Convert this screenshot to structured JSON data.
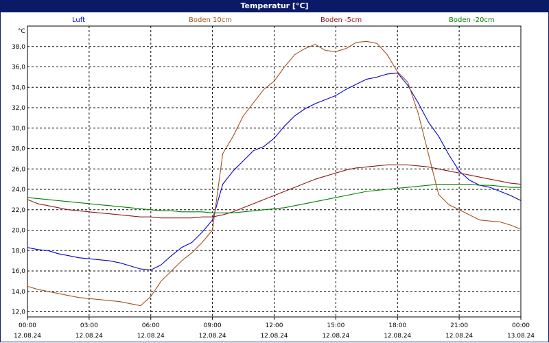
{
  "window": {
    "title": "Temperatur [°C]"
  },
  "chart_data": {
    "type": "line",
    "title": "Temperatur [°C]",
    "ylabel": "°C",
    "xlabel": "",
    "ylim": [
      11.5,
      40
    ],
    "xlim_hours": [
      0,
      24
    ],
    "grid": true,
    "legend_position": "top",
    "yticks": [
      "12,0",
      "14,0",
      "16,0",
      "18,0",
      "20,0",
      "22,0",
      "24,0",
      "26,0",
      "28,0",
      "30,0",
      "32,0",
      "34,0",
      "36,0",
      "38,0"
    ],
    "xticks": [
      {
        "time": "00:00",
        "date": "12.08.24"
      },
      {
        "time": "03:00",
        "date": "12.08.24"
      },
      {
        "time": "06:00",
        "date": "12.08.24"
      },
      {
        "time": "09:00",
        "date": "12.08.24"
      },
      {
        "time": "12:00",
        "date": "12.08.24"
      },
      {
        "time": "15:00",
        "date": "12.08.24"
      },
      {
        "time": "18:00",
        "date": "12.08.24"
      },
      {
        "time": "21:00",
        "date": "12.08.24"
      },
      {
        "time": "00:00",
        "date": "13.08.24"
      }
    ],
    "x_hours": [
      0,
      0.5,
      1,
      1.5,
      2,
      2.5,
      3,
      3.5,
      4,
      4.5,
      5,
      5.5,
      6,
      6.5,
      7,
      7.5,
      8,
      8.5,
      9,
      9.5,
      10,
      10.5,
      11,
      11.5,
      12,
      12.5,
      13,
      13.5,
      14,
      14.5,
      15,
      15.5,
      16,
      16.5,
      17,
      17.5,
      18,
      18.5,
      19,
      19.5,
      20,
      20.5,
      21,
      21.5,
      22,
      22.5,
      23,
      23.5,
      24
    ],
    "series": [
      {
        "name": "Luft",
        "color": "#0000cc",
        "values": [
          18.3,
          18.1,
          18.0,
          17.7,
          17.5,
          17.3,
          17.2,
          17.1,
          17.0,
          16.8,
          16.5,
          16.2,
          16.1,
          16.6,
          17.5,
          18.3,
          18.8,
          19.8,
          21.0,
          24.5,
          25.8,
          26.8,
          27.8,
          28.2,
          29.0,
          30.2,
          31.2,
          31.9,
          32.4,
          32.8,
          33.2,
          33.8,
          34.3,
          34.8,
          35.0,
          35.3,
          35.4,
          34.2,
          32.5,
          30.6,
          29.2,
          27.4,
          25.8,
          24.9,
          24.4,
          24.2,
          23.8,
          23.4,
          22.9
        ]
      },
      {
        "name": "Boden 10cm",
        "color": "#a0521e",
        "values": [
          14.5,
          14.2,
          14.0,
          13.8,
          13.6,
          13.4,
          13.3,
          13.2,
          13.1,
          13.0,
          12.8,
          12.6,
          13.5,
          15.0,
          16.0,
          17.0,
          17.8,
          18.8,
          20.0,
          27.5,
          29.2,
          31.2,
          32.5,
          33.8,
          34.6,
          36.0,
          37.2,
          37.8,
          38.2,
          37.6,
          37.5,
          37.8,
          38.4,
          38.5,
          38.3,
          37.2,
          35.5,
          34.5,
          31.5,
          27.5,
          23.5,
          22.5,
          22.0,
          21.5,
          21.0,
          20.9,
          20.8,
          20.5,
          20.1
        ]
      },
      {
        "name": "Boden -5cm",
        "color": "#8b1a1a",
        "values": [
          23.0,
          22.6,
          22.4,
          22.2,
          22.0,
          21.9,
          21.8,
          21.7,
          21.6,
          21.5,
          21.4,
          21.3,
          21.3,
          21.2,
          21.2,
          21.2,
          21.2,
          21.3,
          21.3,
          21.5,
          21.8,
          22.2,
          22.6,
          23.0,
          23.4,
          23.8,
          24.2,
          24.6,
          25.0,
          25.3,
          25.6,
          25.9,
          26.1,
          26.2,
          26.3,
          26.4,
          26.4,
          26.4,
          26.3,
          26.2,
          26.0,
          25.8,
          25.6,
          25.4,
          25.2,
          25.0,
          24.8,
          24.6,
          24.5
        ]
      },
      {
        "name": "Boden -20cm",
        "color": "#008000",
        "values": [
          23.2,
          23.1,
          23.0,
          22.9,
          22.8,
          22.7,
          22.6,
          22.5,
          22.4,
          22.3,
          22.2,
          22.1,
          22.0,
          21.9,
          21.9,
          21.8,
          21.8,
          21.8,
          21.7,
          21.7,
          21.7,
          21.8,
          21.9,
          22.0,
          22.1,
          22.2,
          22.4,
          22.6,
          22.8,
          23.0,
          23.2,
          23.4,
          23.6,
          23.8,
          23.9,
          24.0,
          24.1,
          24.2,
          24.3,
          24.4,
          24.5,
          24.5,
          24.5,
          24.5,
          24.4,
          24.4,
          24.3,
          24.2,
          24.2
        ]
      }
    ]
  }
}
